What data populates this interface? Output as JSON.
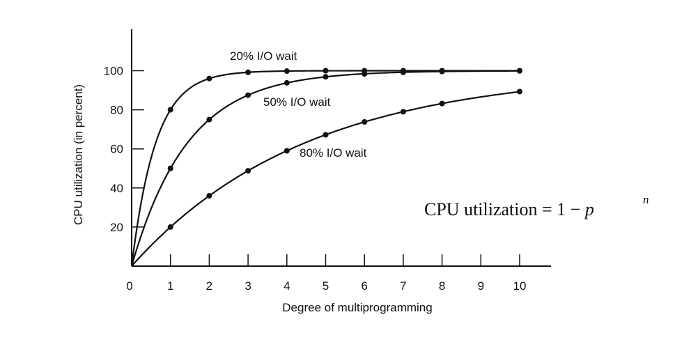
{
  "chart_data": {
    "type": "line",
    "xlabel": "Degree of multiprogramming",
    "ylabel": "CPU utilization (in percent)",
    "xlim": [
      0,
      10
    ],
    "ylim": [
      0,
      100
    ],
    "x_ticks": [
      "0",
      "1",
      "2",
      "3",
      "4",
      "5",
      "6",
      "7",
      "8",
      "9",
      "10"
    ],
    "y_ticks": [
      "20",
      "40",
      "60",
      "80",
      "100"
    ],
    "grid": false,
    "legend": "none",
    "series": [
      {
        "name": "20% I/O wait",
        "x": [
          0,
          1,
          2,
          3,
          4,
          5,
          6,
          7,
          8,
          10
        ],
        "y": [
          0,
          80,
          96,
          99.2,
          99.8,
          100,
          100,
          100,
          100,
          100
        ]
      },
      {
        "name": "50% I/O wait",
        "x": [
          0,
          1,
          2,
          3,
          4,
          5,
          6,
          7,
          8,
          10
        ],
        "y": [
          0,
          50,
          75,
          87.5,
          93.8,
          96.9,
          98.4,
          99.2,
          99.6,
          99.9
        ]
      },
      {
        "name": "80% I/O wait",
        "x": [
          0,
          1,
          2,
          3,
          4,
          5,
          6,
          7,
          8,
          10
        ],
        "y": [
          0,
          20,
          36,
          48.8,
          59,
          67.2,
          73.8,
          79,
          83.2,
          89.3
        ]
      }
    ]
  },
  "formula": {
    "text": "CPU utilization = 1 − ",
    "variable": "p",
    "exponent": "n"
  }
}
